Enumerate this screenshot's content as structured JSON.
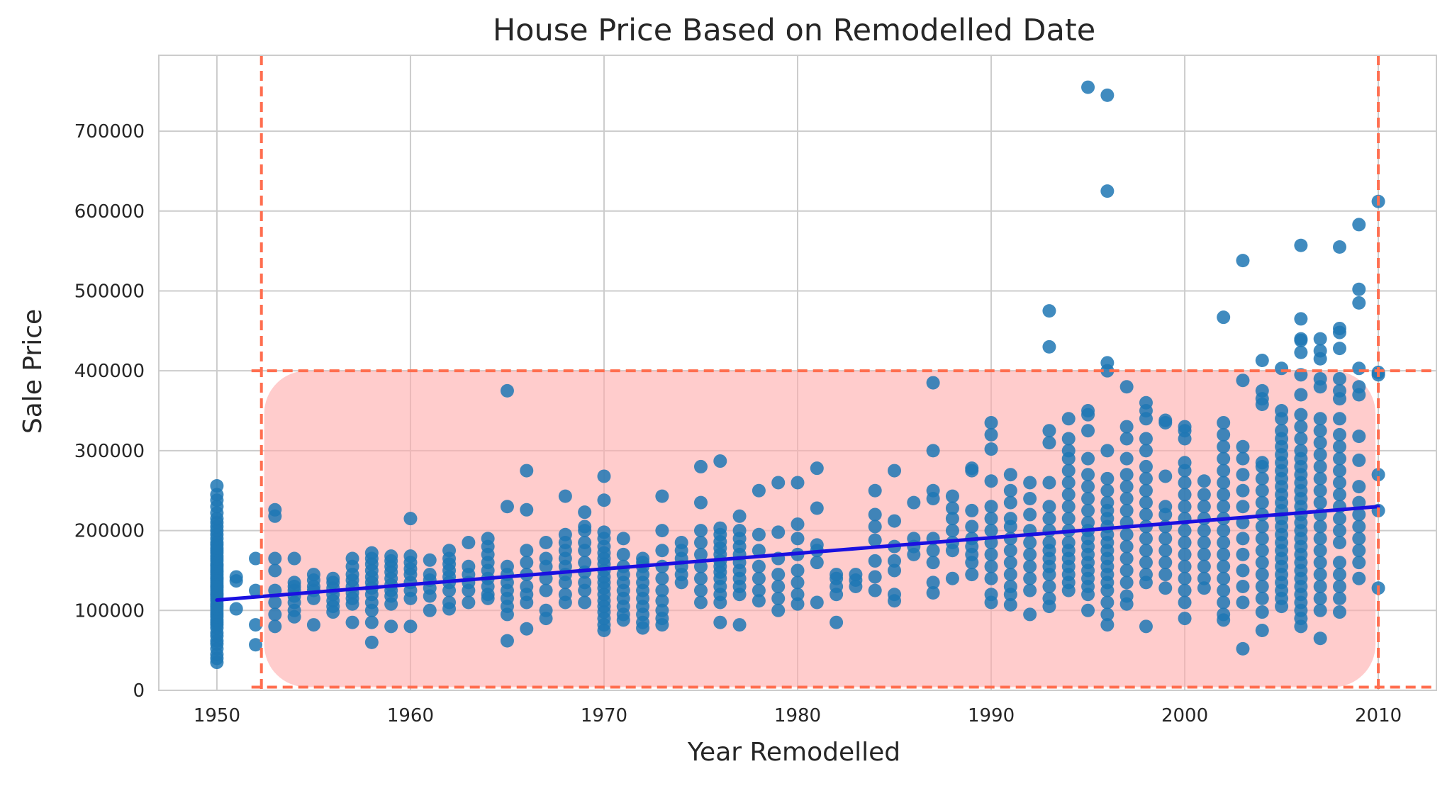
{
  "chart_data": {
    "type": "scatter",
    "title": "House Price Based on Remodelled Date",
    "xlabel": "Year Remodelled",
    "ylabel": "Sale Price",
    "xlim": [
      1947,
      2013
    ],
    "ylim": [
      0,
      795000
    ],
    "x_ticks": [
      1950,
      1960,
      1970,
      1980,
      1990,
      2000,
      2010
    ],
    "y_ticks": [
      0,
      100000,
      200000,
      300000,
      400000,
      500000,
      600000,
      700000
    ],
    "grid": true,
    "legend": "none",
    "colors": {
      "points": "#1f77b4",
      "regression_line": "#1a10e0",
      "highlight_box_fill": "#ffaaaa",
      "highlight_box_border": "#ff6e4f",
      "grid": "#cccccc",
      "spine": "#cccccc"
    },
    "regression_line": {
      "x": [
        1950,
        2010
      ],
      "y": [
        113000,
        230000
      ]
    },
    "highlight_region": {
      "x": [
        1952.3,
        2010
      ],
      "y": [
        4000,
        400000
      ]
    },
    "reference_lines": {
      "vertical_x": [
        1952.3,
        2010
      ],
      "horizontal_y": [
        400000,
        4000
      ]
    },
    "points_by_year": [
      {
        "x": 1950,
        "y": [
          35000,
          40000,
          45000,
          52000,
          58000,
          62000,
          68000,
          72000,
          78000,
          82000,
          85000,
          88000,
          92000,
          95000,
          98000,
          102000,
          105000,
          108000,
          112000,
          115000,
          118000,
          120000,
          122000,
          125000,
          128000,
          130000,
          132000,
          135000,
          138000,
          140000,
          142000,
          145000,
          148000,
          150000,
          153000,
          156000,
          158000,
          162000,
          165000,
          168000,
          172000,
          175000,
          178000,
          182000,
          185000,
          190000,
          195000,
          200000,
          205000,
          210000,
          215000,
          222000,
          230000,
          238000,
          245000,
          256000
        ]
      },
      {
        "x": 1951,
        "y": [
          102000,
          137000,
          142000
        ]
      },
      {
        "x": 1952,
        "y": [
          57000,
          82000,
          125000,
          165000
        ]
      },
      {
        "x": 1953,
        "y": [
          80000,
          95000,
          110000,
          125000,
          150000,
          165000,
          218000,
          226000
        ]
      },
      {
        "x": 1954,
        "y": [
          92000,
          100000,
          110000,
          118000,
          125000,
          130000,
          135000,
          165000
        ]
      },
      {
        "x": 1955,
        "y": [
          82000,
          115000,
          125000,
          130000,
          138000,
          145000
        ]
      },
      {
        "x": 1956,
        "y": [
          98000,
          105000,
          112000,
          120000,
          128000,
          135000,
          140000
        ]
      },
      {
        "x": 1957,
        "y": [
          85000,
          108000,
          115000,
          122000,
          130000,
          138000,
          145000,
          155000,
          165000
        ]
      },
      {
        "x": 1958,
        "y": [
          60000,
          85000,
          100000,
          110000,
          120000,
          128000,
          135000,
          142000,
          150000,
          158000,
          165000,
          172000
        ]
      },
      {
        "x": 1959,
        "y": [
          80000,
          108000,
          118000,
          125000,
          132000,
          140000,
          148000,
          155000,
          162000,
          168000
        ]
      },
      {
        "x": 1960,
        "y": [
          80000,
          115000,
          125000,
          135000,
          145000,
          152000,
          160000,
          168000,
          215000
        ]
      },
      {
        "x": 1961,
        "y": [
          100000,
          118000,
          128000,
          138000,
          145000,
          163000
        ]
      },
      {
        "x": 1962,
        "y": [
          102000,
          110000,
          125000,
          135000,
          142000,
          150000,
          158000,
          165000,
          175000
        ]
      },
      {
        "x": 1963,
        "y": [
          110000,
          125000,
          135000,
          145000,
          155000,
          185000
        ]
      },
      {
        "x": 1964,
        "y": [
          115000,
          120000,
          130000,
          140000,
          150000,
          160000,
          170000,
          180000,
          190000
        ]
      },
      {
        "x": 1965,
        "y": [
          62000,
          95000,
          105000,
          115000,
          125000,
          135000,
          145000,
          155000,
          230000,
          375000
        ]
      },
      {
        "x": 1966,
        "y": [
          77000,
          110000,
          120000,
          130000,
          145000,
          160000,
          175000,
          226000,
          275000
        ]
      },
      {
        "x": 1967,
        "y": [
          90000,
          100000,
          125000,
          140000,
          155000,
          165000,
          185000
        ]
      },
      {
        "x": 1968,
        "y": [
          110000,
          120000,
          135000,
          145000,
          155000,
          165000,
          175000,
          185000,
          195000,
          243000
        ]
      },
      {
        "x": 1969,
        "y": [
          110000,
          125000,
          135000,
          148000,
          160000,
          175000,
          185000,
          200000,
          205000,
          223000
        ]
      },
      {
        "x": 1970,
        "y": [
          75000,
          82000,
          90000,
          98000,
          105000,
          112000,
          120000,
          128000,
          135000,
          142000,
          150000,
          158000,
          165000,
          172000,
          180000,
          190000,
          198000,
          238000,
          268000
        ]
      },
      {
        "x": 1971,
        "y": [
          88000,
          95000,
          105000,
          115000,
          125000,
          135000,
          145000,
          155000,
          170000,
          190000
        ]
      },
      {
        "x": 1972,
        "y": [
          78000,
          85000,
          95000,
          105000,
          115000,
          125000,
          135000,
          145000,
          155000,
          160000,
          165000
        ]
      },
      {
        "x": 1973,
        "y": [
          82000,
          90000,
          100000,
          112000,
          125000,
          140000,
          155000,
          175000,
          200000,
          243000
        ]
      },
      {
        "x": 1974,
        "y": [
          135000,
          145000,
          155000,
          165000,
          175000,
          185000
        ]
      },
      {
        "x": 1975,
        "y": [
          110000,
          125000,
          140000,
          155000,
          170000,
          185000,
          200000,
          235000,
          280000
        ]
      },
      {
        "x": 1976,
        "y": [
          85000,
          110000,
          120000,
          130000,
          140000,
          148000,
          155000,
          162000,
          170000,
          178000,
          186000,
          195000,
          203000,
          287000
        ]
      },
      {
        "x": 1977,
        "y": [
          82000,
          120000,
          130000,
          140000,
          150000,
          160000,
          170000,
          180000,
          190000,
          200000,
          218000
        ]
      },
      {
        "x": 1978,
        "y": [
          112000,
          125000,
          140000,
          155000,
          175000,
          195000,
          250000
        ]
      },
      {
        "x": 1979,
        "y": [
          100000,
          115000,
          130000,
          145000,
          165000,
          198000,
          260000
        ]
      },
      {
        "x": 1980,
        "y": [
          108000,
          120000,
          135000,
          150000,
          170000,
          190000,
          208000,
          260000
        ]
      },
      {
        "x": 1981,
        "y": [
          110000,
          160000,
          175000,
          182000,
          228000,
          278000
        ]
      },
      {
        "x": 1982,
        "y": [
          85000,
          120000,
          130000,
          140000,
          145000
        ]
      },
      {
        "x": 1983,
        "y": [
          130000,
          138000,
          145000
        ]
      },
      {
        "x": 1984,
        "y": [
          125000,
          142000,
          162000,
          188000,
          205000,
          220000,
          250000
        ]
      },
      {
        "x": 1985,
        "y": [
          112000,
          120000,
          150000,
          162000,
          180000,
          212000,
          275000
        ]
      },
      {
        "x": 1986,
        "y": [
          170000,
          180000,
          190000,
          235000
        ]
      },
      {
        "x": 1987,
        "y": [
          122000,
          135000,
          160000,
          175000,
          190000,
          240000,
          250000,
          300000,
          385000
        ]
      },
      {
        "x": 1988,
        "y": [
          140000,
          175000,
          185000,
          200000,
          215000,
          228000,
          243000
        ]
      },
      {
        "x": 1989,
        "y": [
          145000,
          160000,
          170000,
          180000,
          190000,
          205000,
          225000,
          275000,
          278000
        ]
      },
      {
        "x": 1990,
        "y": [
          110000,
          120000,
          140000,
          155000,
          170000,
          185000,
          200000,
          215000,
          230000,
          262000,
          302000,
          320000,
          335000
        ]
      },
      {
        "x": 1991,
        "y": [
          107000,
          120000,
          130000,
          145000,
          160000,
          175000,
          190000,
          205000,
          215000,
          235000,
          250000,
          270000
        ]
      },
      {
        "x": 1992,
        "y": [
          95000,
          125000,
          140000,
          155000,
          170000,
          185000,
          200000,
          220000,
          240000,
          260000
        ]
      },
      {
        "x": 1993,
        "y": [
          105000,
          115000,
          130000,
          145000,
          155000,
          165000,
          175000,
          185000,
          200000,
          215000,
          230000,
          260000,
          310000,
          325000,
          430000,
          475000
        ]
      },
      {
        "x": 1994,
        "y": [
          125000,
          135000,
          145000,
          155000,
          165000,
          175000,
          185000,
          200000,
          215000,
          230000,
          245000,
          260000,
          275000,
          290000,
          300000,
          315000,
          340000
        ]
      },
      {
        "x": 1995,
        "y": [
          100000,
          120000,
          130000,
          140000,
          150000,
          160000,
          170000,
          180000,
          190000,
          200000,
          210000,
          225000,
          240000,
          255000,
          270000,
          290000,
          325000,
          345000,
          350000,
          755000
        ]
      },
      {
        "x": 1996,
        "y": [
          82000,
          95000,
          110000,
          125000,
          135000,
          145000,
          155000,
          165000,
          175000,
          185000,
          195000,
          205000,
          215000,
          225000,
          235000,
          250000,
          265000,
          300000,
          400000,
          410000,
          625000,
          745000
        ]
      },
      {
        "x": 1997,
        "y": [
          108000,
          118000,
          135000,
          150000,
          165000,
          180000,
          195000,
          210000,
          225000,
          240000,
          255000,
          270000,
          290000,
          315000,
          330000,
          380000
        ]
      },
      {
        "x": 1998,
        "y": [
          80000,
          135000,
          145000,
          160000,
          175000,
          190000,
          205000,
          220000,
          235000,
          250000,
          265000,
          280000,
          300000,
          315000,
          340000,
          350000,
          360000
        ]
      },
      {
        "x": 1999,
        "y": [
          128000,
          145000,
          160000,
          175000,
          190000,
          205000,
          220000,
          230000,
          268000,
          335000,
          338000
        ]
      },
      {
        "x": 2000,
        "y": [
          90000,
          110000,
          125000,
          140000,
          155000,
          170000,
          185000,
          200000,
          215000,
          230000,
          245000,
          260000,
          275000,
          285000,
          315000,
          325000,
          330000
        ]
      },
      {
        "x": 2001,
        "y": [
          128000,
          140000,
          155000,
          170000,
          185000,
          200000,
          215000,
          230000,
          245000,
          262000
        ]
      },
      {
        "x": 2002,
        "y": [
          88000,
          95000,
          110000,
          125000,
          140000,
          155000,
          170000,
          185000,
          200000,
          215000,
          230000,
          245000,
          260000,
          275000,
          290000,
          305000,
          320000,
          335000,
          467000
        ]
      },
      {
        "x": 2003,
        "y": [
          52000,
          110000,
          130000,
          150000,
          170000,
          190000,
          210000,
          230000,
          250000,
          270000,
          290000,
          305000,
          388000,
          538000
        ]
      },
      {
        "x": 2004,
        "y": [
          75000,
          98000,
          115000,
          130000,
          145000,
          160000,
          175000,
          190000,
          205000,
          220000,
          235000,
          250000,
          265000,
          280000,
          285000,
          358000,
          365000,
          375000,
          413000
        ]
      },
      {
        "x": 2005,
        "y": [
          105000,
          115000,
          125000,
          135000,
          145000,
          155000,
          165000,
          175000,
          185000,
          195000,
          205000,
          215000,
          225000,
          235000,
          245000,
          255000,
          265000,
          275000,
          285000,
          295000,
          305000,
          315000,
          325000,
          340000,
          350000,
          403000
        ]
      },
      {
        "x": 2006,
        "y": [
          80000,
          90000,
          100000,
          110000,
          120000,
          130000,
          140000,
          150000,
          160000,
          170000,
          180000,
          190000,
          200000,
          210000,
          220000,
          230000,
          240000,
          250000,
          260000,
          270000,
          280000,
          290000,
          300000,
          315000,
          330000,
          345000,
          370000,
          395000,
          423000,
          438000,
          440000,
          465000,
          557000
        ]
      },
      {
        "x": 2007,
        "y": [
          65000,
          100000,
          115000,
          130000,
          145000,
          160000,
          175000,
          190000,
          205000,
          220000,
          235000,
          250000,
          265000,
          280000,
          295000,
          310000,
          325000,
          340000,
          380000,
          390000,
          415000,
          425000,
          440000
        ]
      },
      {
        "x": 2008,
        "y": [
          98000,
          115000,
          130000,
          145000,
          160000,
          185000,
          200000,
          215000,
          230000,
          245000,
          260000,
          275000,
          290000,
          305000,
          320000,
          340000,
          365000,
          375000,
          390000,
          428000,
          448000,
          453000,
          555000
        ]
      },
      {
        "x": 2009,
        "y": [
          140000,
          160000,
          175000,
          190000,
          205000,
          220000,
          235000,
          255000,
          288000,
          318000,
          370000,
          380000,
          403000,
          485000,
          502000,
          583000
        ]
      },
      {
        "x": 2010,
        "y": [
          128000,
          225000,
          270000,
          395000,
          398000,
          612000
        ]
      }
    ]
  }
}
